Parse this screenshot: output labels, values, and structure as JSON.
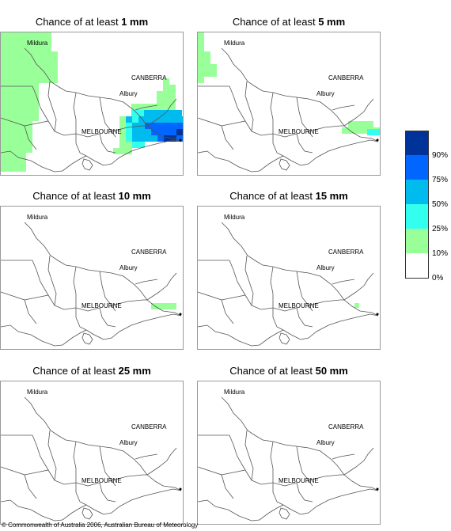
{
  "panels": [
    {
      "prefix": "Chance of at least ",
      "amount": "1 mm",
      "fill": "p1"
    },
    {
      "prefix": "Chance of at least ",
      "amount": "5 mm",
      "fill": "p5"
    },
    {
      "prefix": "Chance of at least ",
      "amount": "10 mm",
      "fill": "p10"
    },
    {
      "prefix": "Chance of at least ",
      "amount": "15 mm",
      "fill": "p15"
    },
    {
      "prefix": "Chance of at least ",
      "amount": "25 mm",
      "fill": "none"
    },
    {
      "prefix": "Chance of at least ",
      "amount": "50 mm",
      "fill": "none"
    }
  ],
  "places": {
    "mildura": "Mildura",
    "canberra": "CANBERRA",
    "albury": "Albury",
    "melbourne": "MELBOURNE"
  },
  "legend": {
    "labels": [
      "90%",
      "75%",
      "50%",
      "25%",
      "10%",
      "0%"
    ],
    "colors": [
      "#003399",
      "#0066ff",
      "#00bbee",
      "#33ffee",
      "#99ff99",
      "#ffffff"
    ]
  },
  "colors": {
    "green": "#99ff99",
    "cyan": "#33ffee",
    "sky": "#00bbee",
    "blue": "#0066ff",
    "navy": "#003399"
  },
  "copyright": "© Commonwealth of Australia 2006, Australian Bureau of Meteorology"
}
